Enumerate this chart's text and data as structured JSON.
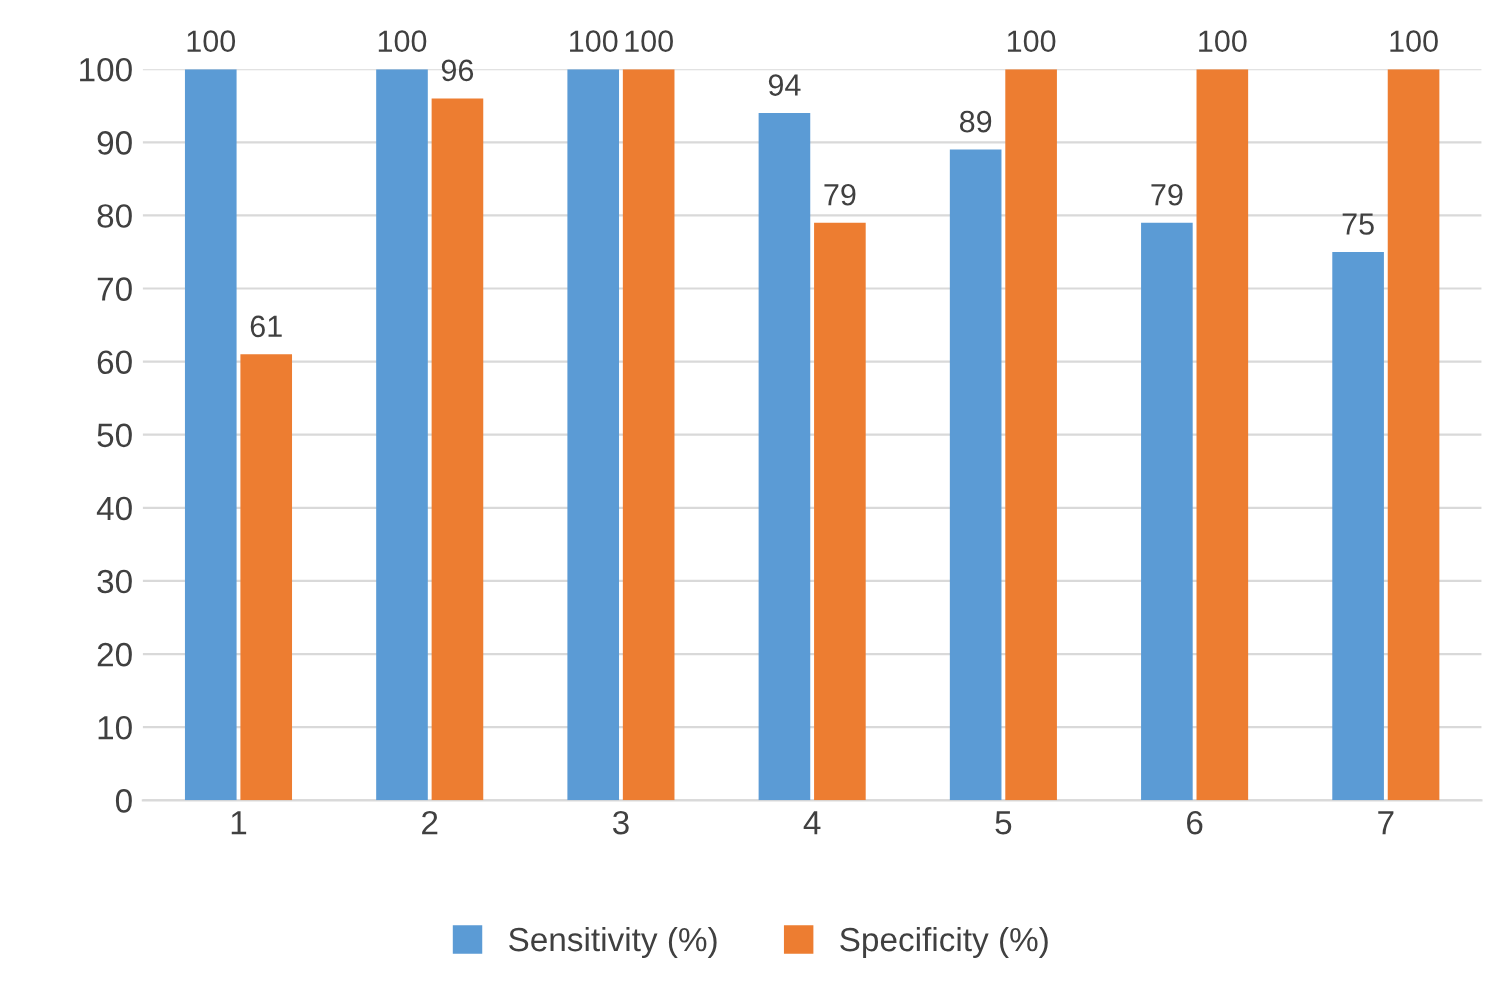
{
  "chart_data": {
    "type": "bar",
    "categories": [
      "1",
      "2",
      "3",
      "4",
      "5",
      "6",
      "7"
    ],
    "series": [
      {
        "name": "Sensitivity (%)",
        "color": "#5b9bd5",
        "values": [
          100,
          100,
          100,
          94,
          89,
          79,
          75
        ]
      },
      {
        "name": "Specificity (%)",
        "color": "#ed7d31",
        "values": [
          61,
          96,
          100,
          79,
          100,
          100,
          100
        ]
      }
    ],
    "ylim": [
      0,
      100
    ],
    "yticks": [
      0,
      10,
      20,
      30,
      40,
      50,
      60,
      70,
      80,
      90,
      100
    ],
    "grid": "y",
    "legend": "bottom",
    "data_labels": true
  }
}
